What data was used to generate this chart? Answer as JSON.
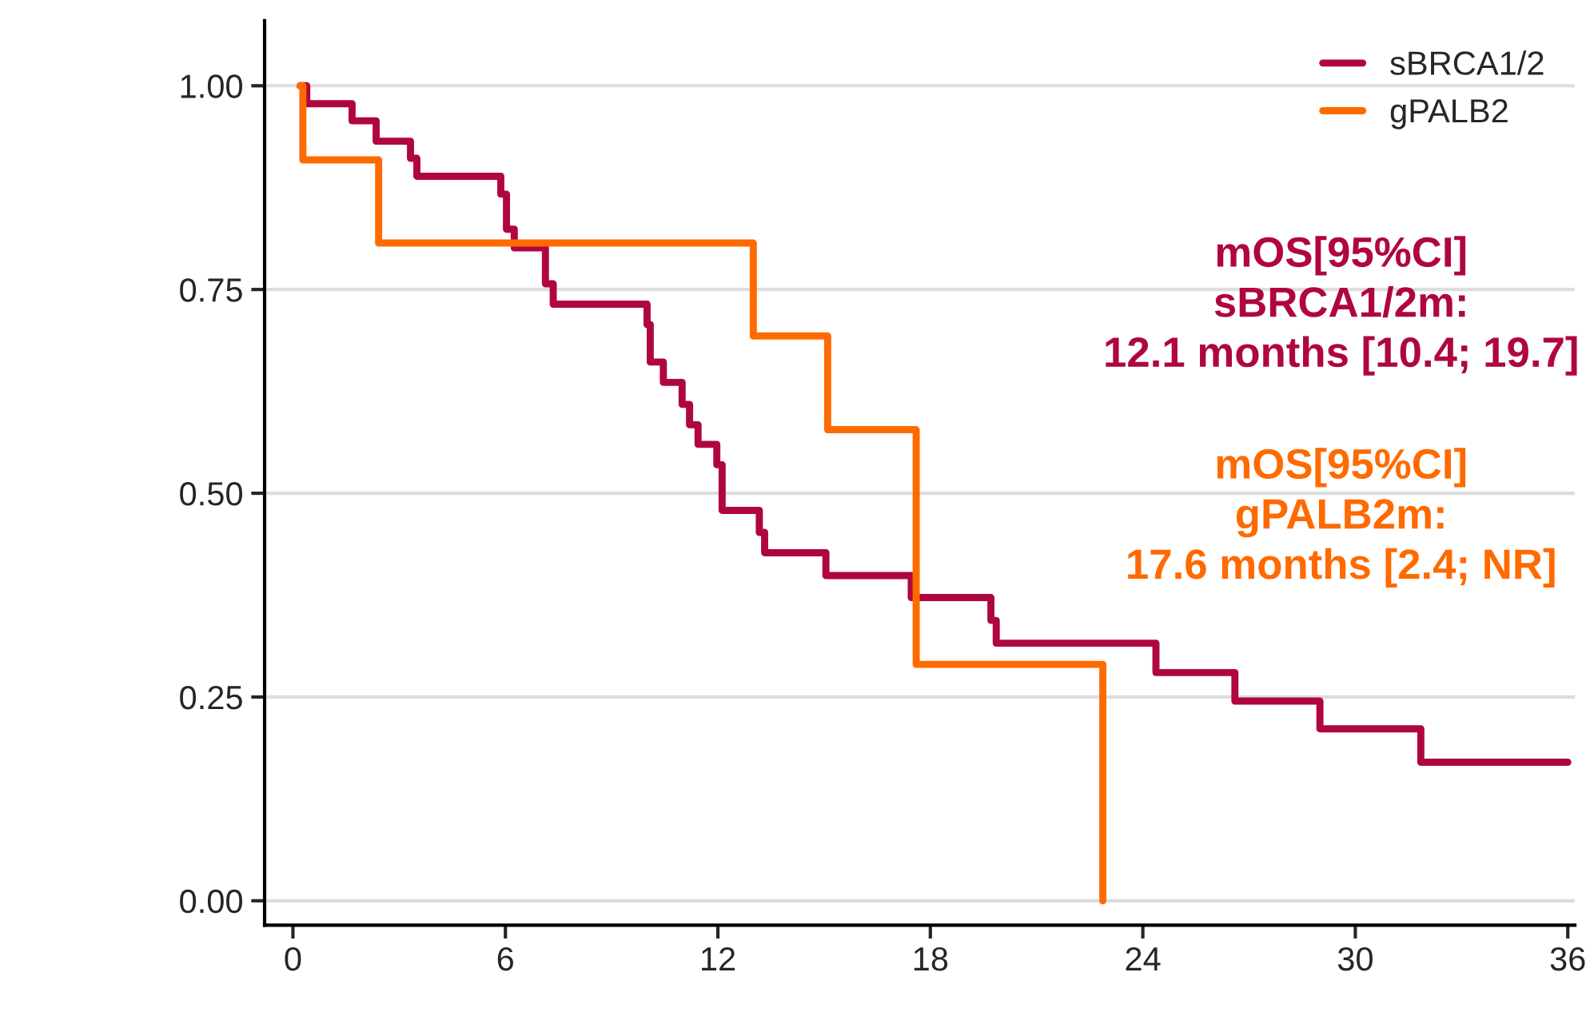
{
  "chart_data": {
    "type": "step",
    "series": [
      {
        "name": "sBRCA1/2",
        "color": "#b0063f",
        "x": [
          0.2,
          0.39,
          1.67,
          2.35,
          3.32,
          3.5,
          5.87,
          6.03,
          6.25,
          7.13,
          7.35,
          10.0,
          10.09,
          10.46,
          10.99,
          11.2,
          11.44,
          11.97,
          12.12,
          13.17,
          13.32,
          15.05,
          17.46,
          19.71,
          19.86,
          24.37,
          26.6,
          29.0,
          31.85,
          36.0
        ],
        "values": [
          1.0,
          0.978,
          0.957,
          0.932,
          0.911,
          0.889,
          0.867,
          0.824,
          0.801,
          0.757,
          0.732,
          0.707,
          0.661,
          0.636,
          0.609,
          0.584,
          0.56,
          0.535,
          0.479,
          0.452,
          0.427,
          0.399,
          0.372,
          0.344,
          0.316,
          0.28,
          0.245,
          0.211,
          0.17,
          0.17
        ]
      },
      {
        "name": "gPALB2",
        "color": "#ff6a00",
        "x": [
          0.2,
          0.28,
          2.42,
          13.0,
          15.1,
          17.6,
          22.87
        ],
        "values": [
          1.0,
          0.909,
          0.807,
          0.693,
          0.578,
          0.29,
          0.0
        ]
      }
    ],
    "xlim": [
      -0.8,
      36.2
    ],
    "xticks": [
      0,
      6,
      12,
      18,
      24,
      30,
      36
    ],
    "ylim": [
      -0.03,
      1.08
    ],
    "yticks": [
      {
        "value": 0,
        "label": "0.00"
      },
      {
        "value": 0.25,
        "label": "0.25"
      },
      {
        "value": 0.5,
        "label": "0.50"
      },
      {
        "value": 0.75,
        "label": "0.75"
      },
      {
        "value": 1.0,
        "label": "1.00"
      }
    ],
    "grid": "y",
    "legend": "top right",
    "marker": "none",
    "line_style": "solid",
    "annotations": [
      "mOS[95%CI]\nsBRCA1/2m:\n12.1 months [10.4; 19.7]",
      "mOS[95%CI]\ngPALB2m:\n17.6 months [2.4; NR]"
    ]
  }
}
